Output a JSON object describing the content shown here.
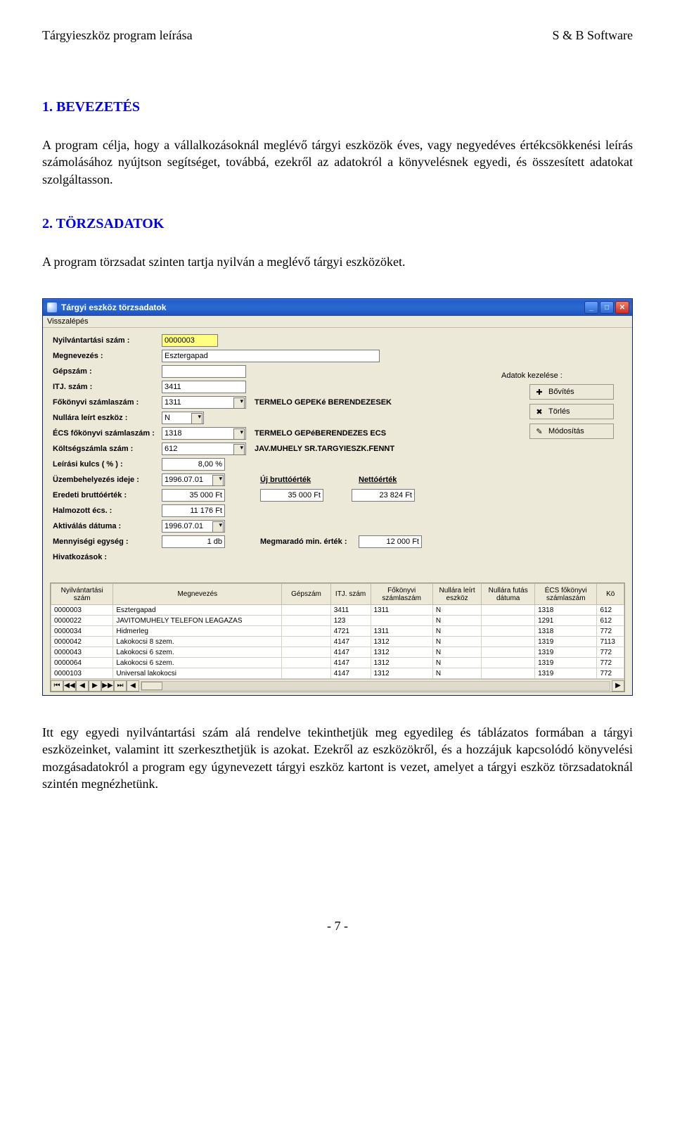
{
  "page": {
    "header_left": "Tárgyieszköz program leírása",
    "header_right": "S & B Software",
    "footer": "- 7 -"
  },
  "section1": {
    "heading": "1. BEVEZETÉS",
    "body": "A program célja, hogy a vállalkozásoknál meglévő tárgyi eszközök éves, vagy negyedéves értékcsökkenési leírás számolásához nyújtson segítséget, továbbá, ezekről az adatokról a könyvelésnek egyedi, és összesített adatokat szolgáltasson."
  },
  "section2": {
    "heading": "2. TÖRZSADATOK",
    "intro": "A program törzsadat szinten tartja nyilván a meglévő tárgyi eszközöket.",
    "outro": "Itt egy egyedi nyilvántartási szám alá rendelve tekinthetjük meg egyedileg és táblázatos formában a tárgyi eszközeinket, valamint itt szerkeszthetjük is azokat. Ezekről az eszközökről, és a hozzájuk kapcsolódó könyvelési mozgásadatokról a program egy úgynevezett tárgyi eszköz kartont is vezet, amelyet a tárgyi eszköz törzsadatoknál szintén megnézhetünk."
  },
  "app": {
    "title": "Tárgyi eszköz törzsadatok",
    "menu": "Visszalépés",
    "labels": {
      "nyilv": "Nyilvántartási szám :",
      "megnev": "Megnevezés :",
      "gepszam": "Gépszám :",
      "itj": "ITJ. szám :",
      "fokonyvi": "Főkönyvi számlaszám :",
      "nullara": "Nullára leírt eszköz :",
      "ecs": "ÉCS főkönyvi számlaszám :",
      "koltseg": "Költségszámla szám :",
      "leirasi": "Leírási kulcs ( % ) :",
      "uzembe": "Üzembehelyezés ideje :",
      "eredeti": "Eredeti bruttóérték :",
      "halmozott": "Halmozott écs. :",
      "aktivalas": "Aktiválás dátuma :",
      "mennyiseg": "Mennyiségi egység :",
      "hivatkozas": "Hivatkozások :",
      "fokonyvi_side": "TERMELO GEPEKé BERENDEZESEK",
      "ecs_side1": "TERMELO GEPéBERENDEZES ECS",
      "ecs_side2": "JAV.MUHELY SR.TARGYIESZK.FENNT",
      "uj_brutto": "Új bruttóérték",
      "netto": "Nettóérték",
      "megmarado": "Megmaradó min. érték :"
    },
    "values": {
      "nyilv": "0000003",
      "megnev": "Esztergapad",
      "gepszam": "",
      "itj": "3411",
      "fokonyvi": "1311",
      "nullara": "N",
      "ecs": "1318",
      "koltseg": "612",
      "leirasi": "8,00 %",
      "uzembe": "1996.07.01",
      "eredeti": "35 000 Ft",
      "halmozott": "11 176 Ft",
      "aktivalas": "1996.07.01",
      "mennyiseg": "1 db",
      "uj_brutto": "35 000 Ft",
      "netto": "23 824 Ft",
      "megmarado": "12 000 Ft"
    },
    "actions": {
      "title": "Adatok kezelése :",
      "add": "Bővítés",
      "del": "Törlés",
      "mod": "Módosítás"
    },
    "grid": {
      "headers": {
        "c1": "Nyilvántartási szám",
        "c2": "Megnevezés",
        "c3": "Gépszám",
        "c4": "ITJ. szám",
        "c5": "Főkönyvi számlaszám",
        "c6": "Nullára leírt eszköz",
        "c7": "Nullára futás dátuma",
        "c8": "ÉCS főkönyvi számlaszám",
        "c9": "Kö"
      },
      "rows": [
        {
          "c1": "0000003",
          "c2": "Esztergapad",
          "c3": "",
          "c4": "3411",
          "c5": "1311",
          "c6": "N",
          "c7": "",
          "c8": "1318",
          "c9": "612"
        },
        {
          "c1": "0000022",
          "c2": "JAVITOMUHELY TELEFON LEAGAZAS",
          "c3": "",
          "c4": "123",
          "c5": "",
          "c6": "N",
          "c7": "",
          "c8": "1291",
          "c9": "612"
        },
        {
          "c1": "0000034",
          "c2": "Hidmerleg",
          "c3": "",
          "c4": "4721",
          "c5": "1311",
          "c6": "N",
          "c7": "",
          "c8": "1318",
          "c9": "772"
        },
        {
          "c1": "0000042",
          "c2": "Lakokocsi 8 szem.",
          "c3": "",
          "c4": "4147",
          "c5": "1312",
          "c6": "N",
          "c7": "",
          "c8": "1319",
          "c9": "7113"
        },
        {
          "c1": "0000043",
          "c2": "Lakokocsi 6 szem.",
          "c3": "",
          "c4": "4147",
          "c5": "1312",
          "c6": "N",
          "c7": "",
          "c8": "1319",
          "c9": "772"
        },
        {
          "c1": "0000064",
          "c2": "Lakokocsi 6 szem.",
          "c3": "",
          "c4": "4147",
          "c5": "1312",
          "c6": "N",
          "c7": "",
          "c8": "1319",
          "c9": "772"
        },
        {
          "c1": "0000103",
          "c2": "Universal lakokocsi",
          "c3": "",
          "c4": "4147",
          "c5": "1312",
          "c6": "N",
          "c7": "",
          "c8": "1319",
          "c9": "772"
        }
      ]
    }
  }
}
